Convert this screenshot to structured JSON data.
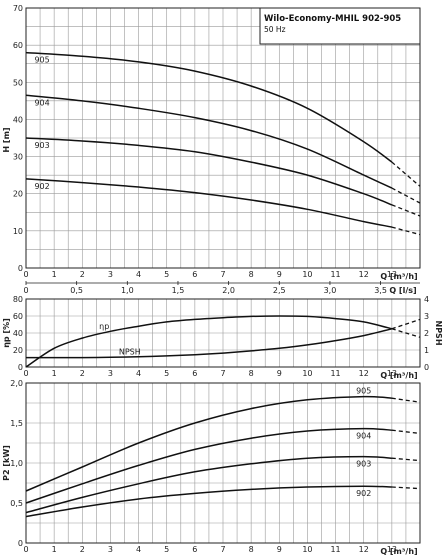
{
  "title_box": {
    "title": "Wilo-Economy-MHIL 902-905",
    "subtitle": "50 Hz"
  },
  "chart_data": [
    {
      "type": "line",
      "ylabel": "H [m]",
      "xlabel": "Q [m³/h]",
      "x2label": "Q [l/s]",
      "xlim": [
        0,
        14
      ],
      "ylim": [
        0,
        70
      ],
      "x_ticks": [
        "0",
        "1",
        "2",
        "3",
        "4",
        "5",
        "6",
        "7",
        "8",
        "9",
        "10",
        "11",
        "12",
        "13"
      ],
      "y_ticks": [
        "0",
        "10",
        "20",
        "30",
        "40",
        "50",
        "60",
        "70"
      ],
      "x2_ticks": [
        "0",
        "0,5",
        "1,0",
        "1,5",
        "2,0",
        "2,5",
        "3,0",
        "3,5"
      ],
      "x2_values": [
        0,
        0.5,
        1.0,
        1.5,
        2.0,
        2.5,
        3.0,
        3.5
      ],
      "grid": true,
      "series": [
        {
          "name": "905",
          "x": [
            0,
            2,
            4,
            6,
            8,
            10,
            12,
            13,
            14
          ],
          "y": [
            58,
            57,
            55.5,
            53,
            49,
            43,
            34,
            28.5,
            22
          ],
          "solid_until": 13
        },
        {
          "name": "904",
          "x": [
            0,
            2,
            4,
            6,
            8,
            10,
            12,
            13,
            14
          ],
          "y": [
            46.5,
            45,
            43,
            40.5,
            37,
            32,
            25,
            21.5,
            17.5
          ],
          "solid_until": 13
        },
        {
          "name": "903",
          "x": [
            0,
            2,
            4,
            6,
            8,
            10,
            12,
            13,
            14
          ],
          "y": [
            35,
            34.2,
            33,
            31.3,
            28.5,
            25,
            20,
            17,
            14
          ],
          "solid_until": 13
        },
        {
          "name": "902",
          "x": [
            0,
            2,
            4,
            6,
            8,
            10,
            12,
            13,
            14
          ],
          "y": [
            24,
            23,
            21.8,
            20.3,
            18.3,
            15.8,
            12.5,
            11,
            9
          ],
          "solid_until": 13
        }
      ],
      "curve_labels": [
        "905",
        "904",
        "903",
        "902"
      ]
    },
    {
      "type": "line",
      "ylabel": "ηp [%]",
      "y2label": "NPSH",
      "xlabel": "Q [m³/h]",
      "xlim": [
        0,
        14
      ],
      "ylim": [
        0,
        80
      ],
      "y2lim": [
        0,
        4
      ],
      "x_ticks": [
        "0",
        "1",
        "2",
        "3",
        "4",
        "5",
        "6",
        "7",
        "8",
        "9",
        "10",
        "11",
        "12",
        "13"
      ],
      "y_ticks": [
        "0",
        "20",
        "40",
        "60",
        "80"
      ],
      "y2_ticks": [
        "0",
        "1",
        "2",
        "3",
        "4"
      ],
      "grid": true,
      "series": [
        {
          "name": "ηp",
          "axis": "left",
          "x": [
            0,
            1,
            2,
            3,
            4,
            5,
            6,
            7,
            8,
            9,
            10,
            11,
            12,
            13,
            14
          ],
          "y": [
            0,
            22,
            34,
            42,
            48,
            53,
            56,
            58,
            59.5,
            60,
            59.5,
            57,
            53,
            45,
            35
          ],
          "solid_until": 13
        },
        {
          "name": "NPSH",
          "axis": "right",
          "x": [
            0,
            1,
            2,
            3,
            4,
            5,
            6,
            7,
            8,
            9,
            10,
            11,
            12,
            13,
            14
          ],
          "y": [
            0.55,
            0.55,
            0.55,
            0.57,
            0.6,
            0.65,
            0.72,
            0.82,
            0.95,
            1.1,
            1.3,
            1.55,
            1.85,
            2.25,
            2.8
          ],
          "solid_until": 13
        }
      ],
      "curve_labels": [
        "ηp",
        "NPSH"
      ]
    },
    {
      "type": "line",
      "ylabel": "P2 [kW]",
      "xlabel": "Q [m³/h]",
      "xlim": [
        0,
        14
      ],
      "ylim": [
        0,
        2.0
      ],
      "x_ticks": [
        "0",
        "1",
        "2",
        "3",
        "4",
        "5",
        "6",
        "7",
        "8",
        "9",
        "10",
        "11",
        "12",
        "13"
      ],
      "y_ticks": [
        "0",
        "0,5",
        "1,0",
        "1,5",
        "2,0"
      ],
      "grid": true,
      "series": [
        {
          "name": "905",
          "x": [
            0,
            2,
            4,
            6,
            8,
            10,
            12,
            13,
            14
          ],
          "y": [
            0.65,
            0.95,
            1.25,
            1.5,
            1.68,
            1.79,
            1.83,
            1.81,
            1.76
          ],
          "solid_until": 13
        },
        {
          "name": "904",
          "x": [
            0,
            2,
            4,
            6,
            8,
            10,
            12,
            13,
            14
          ],
          "y": [
            0.5,
            0.74,
            0.97,
            1.17,
            1.31,
            1.4,
            1.43,
            1.41,
            1.37
          ],
          "solid_until": 13
        },
        {
          "name": "903",
          "x": [
            0,
            2,
            4,
            6,
            8,
            10,
            12,
            13,
            14
          ],
          "y": [
            0.38,
            0.57,
            0.74,
            0.89,
            0.99,
            1.06,
            1.08,
            1.06,
            1.03
          ],
          "solid_until": 13
        },
        {
          "name": "902",
          "x": [
            0,
            2,
            4,
            6,
            8,
            10,
            12,
            13,
            14
          ],
          "y": [
            0.33,
            0.45,
            0.55,
            0.62,
            0.67,
            0.7,
            0.71,
            0.7,
            0.68
          ],
          "solid_until": 13
        }
      ],
      "curve_labels": [
        "905",
        "904",
        "903",
        "902"
      ]
    }
  ]
}
